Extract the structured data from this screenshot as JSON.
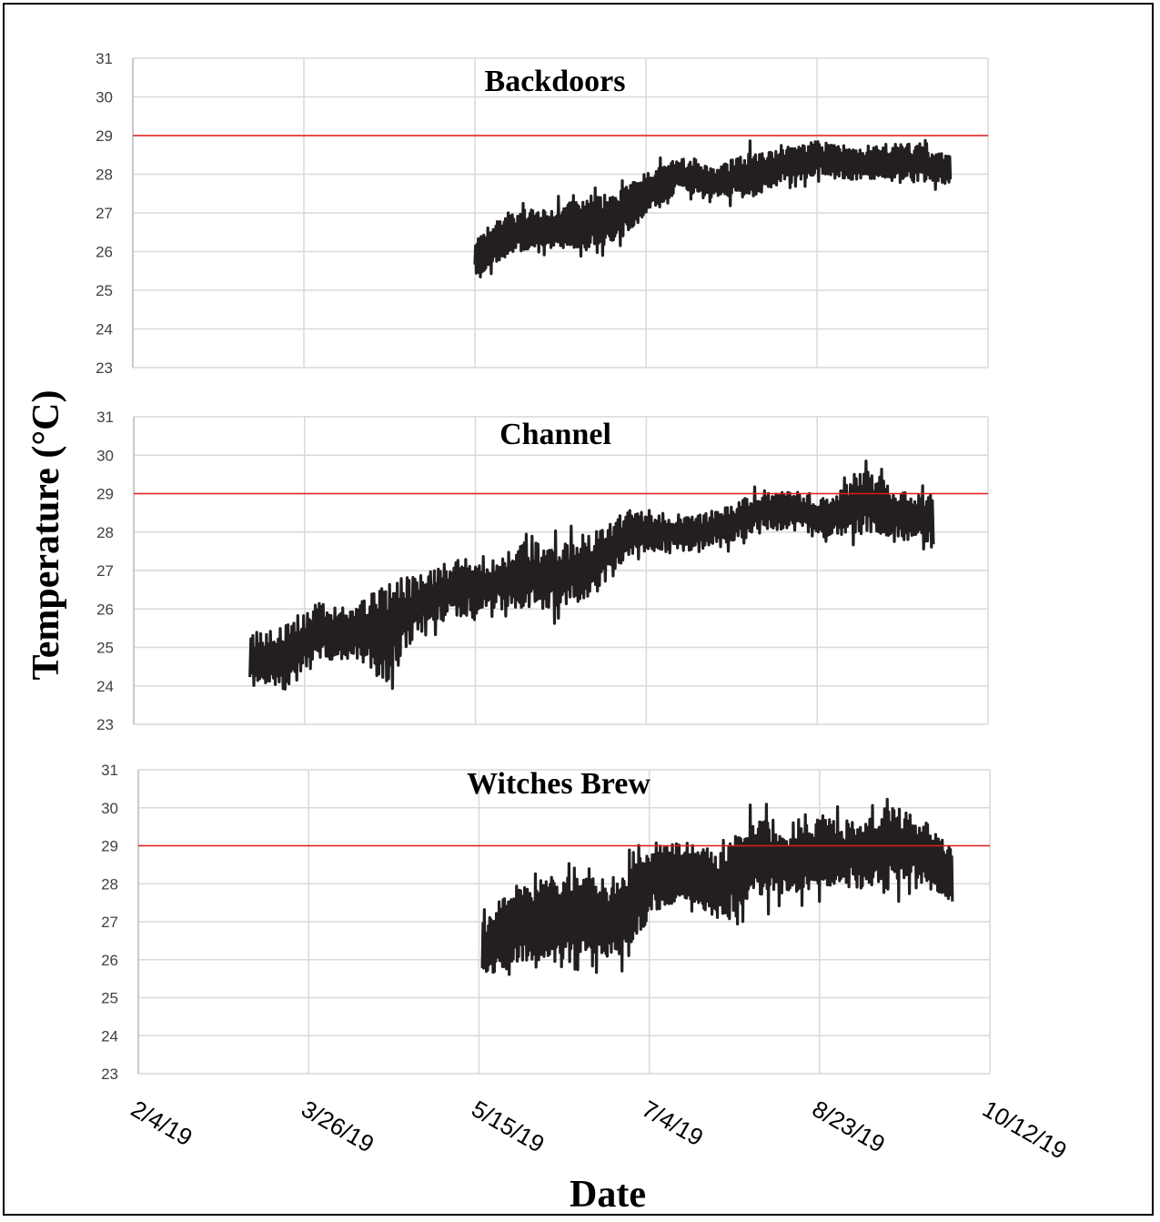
{
  "chart_data": {
    "type": "line",
    "ylabel": "Temperature (°C)",
    "xlabel": "Date",
    "x_ticks": [
      "2/4/19",
      "3/26/19",
      "5/15/19",
      "7/4/19",
      "8/23/19",
      "10/12/19"
    ],
    "xlim": [
      "2/4/19",
      "10/12/19"
    ],
    "ylim": [
      23,
      31
    ],
    "y_ticks": [
      23,
      24,
      25,
      26,
      27,
      28,
      29,
      30,
      31
    ],
    "grid": true,
    "threshold": {
      "value": 29,
      "color": "#e31a1c"
    },
    "series_color": "#231f20",
    "panels": [
      {
        "title": "Backdoors",
        "x": [
          "5/15/19",
          "5/25/19",
          "6/4/19",
          "6/14/19",
          "6/24/19",
          "7/4/19",
          "7/14/19",
          "7/24/19",
          "8/3/19",
          "8/13/19",
          "8/23/19",
          "9/2/19",
          "9/12/19",
          "9/22/19",
          "10/1/19"
        ],
        "low": [
          25.1,
          25.7,
          25.9,
          25.8,
          25.9,
          26.6,
          27.4,
          27.2,
          27.1,
          27.6,
          27.7,
          27.7,
          27.7,
          27.6,
          27.6
        ],
        "high": [
          26.6,
          27.3,
          27.3,
          27.6,
          27.8,
          28.3,
          28.6,
          28.3,
          28.9,
          28.8,
          29.1,
          28.8,
          29.0,
          29.0,
          28.6
        ]
      },
      {
        "title": "Channel",
        "x": [
          "3/10/19",
          "3/20/19",
          "3/30/19",
          "4/9/19",
          "4/19/19",
          "4/29/19",
          "5/9/19",
          "5/19/19",
          "5/29/19",
          "6/8/19",
          "6/18/19",
          "6/28/19",
          "7/8/19",
          "7/18/19",
          "7/28/19",
          "8/7/19",
          "8/17/19",
          "8/27/19",
          "9/6/19",
          "9/16/19",
          "9/26/19"
        ],
        "low": [
          23.5,
          23.5,
          24.2,
          24.4,
          23.5,
          25.1,
          25.4,
          25.7,
          25.6,
          25.6,
          25.9,
          26.9,
          27.2,
          27.3,
          27.5,
          27.8,
          27.7,
          27.6,
          27.6,
          27.6,
          27.3
        ],
        "high": [
          25.8,
          26.0,
          26.5,
          26.4,
          27.3,
          27.2,
          27.7,
          27.5,
          28.1,
          28.1,
          28.3,
          28.9,
          28.8,
          28.6,
          28.9,
          29.3,
          29.4,
          29.1,
          30.0,
          29.3,
          29.2
        ]
      },
      {
        "title": "Witches Brew",
        "x": [
          "5/16/19",
          "5/26/19",
          "6/5/19",
          "6/15/19",
          "6/25/19",
          "7/5/19",
          "7/15/19",
          "7/25/19",
          "8/4/19",
          "8/14/19",
          "8/24/19",
          "9/3/19",
          "9/13/19",
          "9/23/19",
          "10/1/19"
        ],
        "low": [
          24.9,
          25.5,
          25.5,
          25.7,
          25.5,
          26.8,
          27.3,
          26.6,
          27.1,
          27.3,
          27.5,
          27.5,
          27.5,
          27.5,
          27.2
        ],
        "high": [
          27.4,
          28.4,
          28.7,
          28.6,
          28.7,
          29.4,
          29.4,
          29.2,
          30.4,
          29.6,
          30.2,
          30.0,
          30.5,
          30.1,
          29.2
        ]
      }
    ]
  }
}
